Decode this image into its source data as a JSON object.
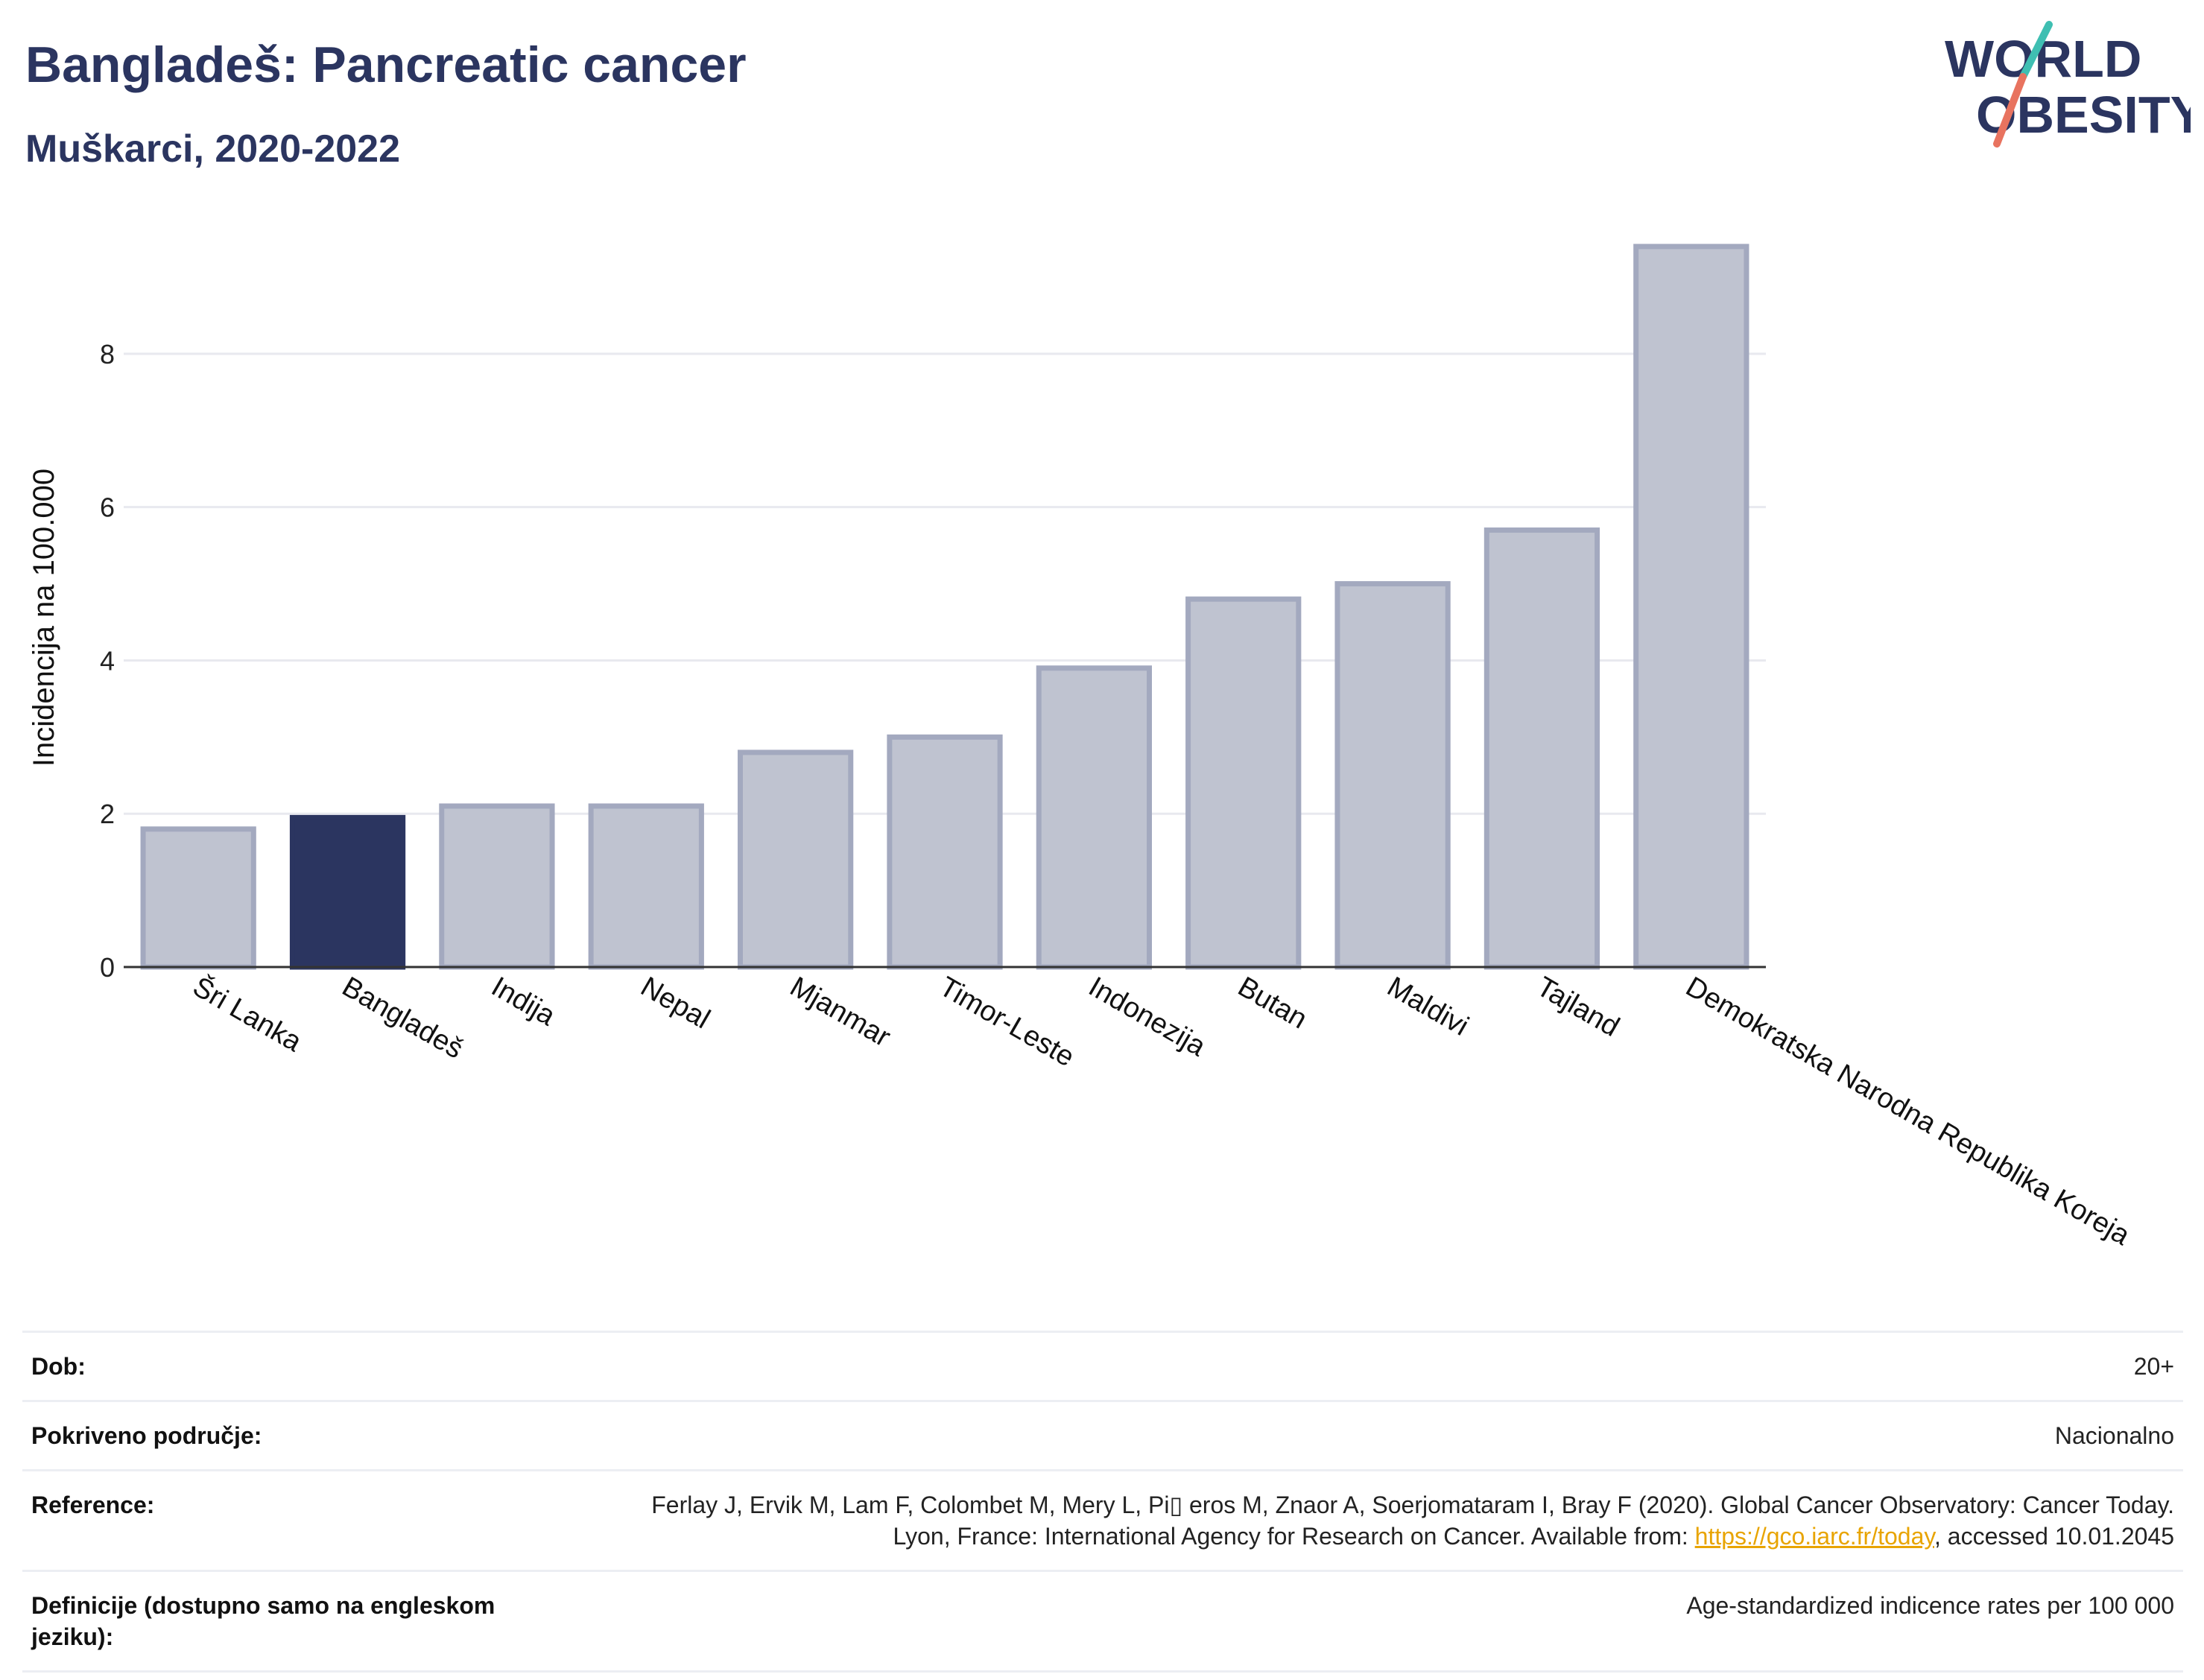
{
  "header": {
    "title": "Bangladeš: Pancreatic cancer",
    "subtitle": "Muškarci, 2020-2022"
  },
  "logo": {
    "line1": "WORLD",
    "line2": "OBESITY",
    "name": "world-obesity-logo"
  },
  "colors": {
    "highlight": "#2b3560",
    "bar_fill": "#bfc3d0",
    "bar_stroke": "#a3a9bf",
    "grid": "#e8e9ef",
    "logo_teal": "#3fbfb2",
    "logo_red": "#e8735f"
  },
  "chart_data": {
    "type": "bar",
    "title": "",
    "xlabel": "",
    "ylabel": "Incidencija na 100.000",
    "ylim": [
      0,
      9.7
    ],
    "yticks": [
      0,
      2,
      4,
      6,
      8
    ],
    "grid": true,
    "categories": [
      "Šri Lanka",
      "Bangladeš",
      "Indija",
      "Nepal",
      "Mjanmar",
      "Timor-Leste",
      "Indonezija",
      "Butan",
      "Maldivi",
      "Tajland",
      "Demokratska Narodna Republika Koreja"
    ],
    "values": [
      1.8,
      1.95,
      2.1,
      2.1,
      2.8,
      3.0,
      3.9,
      4.8,
      5.0,
      5.7,
      9.4
    ],
    "highlight": "Bangladeš"
  },
  "info": {
    "age_label": "Dob:",
    "age_value": "20+",
    "coverage_label": "Pokriveno područje:",
    "coverage_value": "Nacionalno",
    "reference_label": "Reference:",
    "reference_text": "Ferlay J, Ervik M, Lam F, Colombet M, Mery L, Pi▯ eros M, Znaor A, Soerjomataram I, Bray F (2020). Global Cancer Observatory: Cancer Today. Lyon, France: International Agency for Research on Cancer. Available from:",
    "reference_link": "https://gco.iarc.fr/today",
    "reference_suffix": ", accessed 10.01.2045",
    "definitions_label": "Definicije (dostupno samo na engleskom jeziku):",
    "definitions_value": "Age-standardized indicence rates per 100 000"
  }
}
